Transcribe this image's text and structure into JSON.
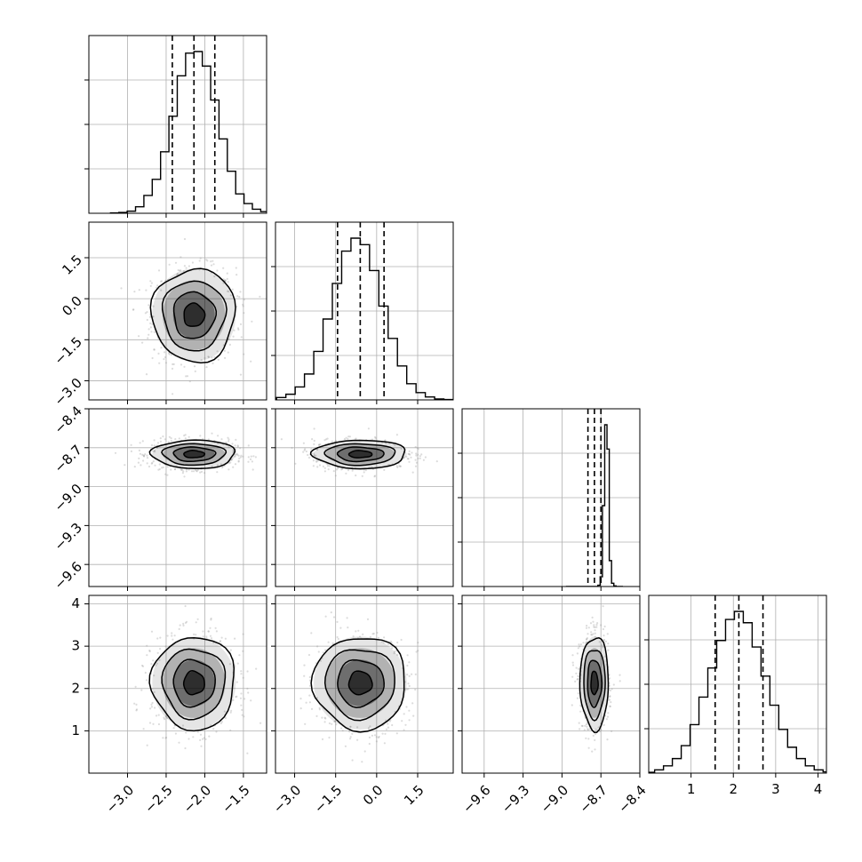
{
  "chart_data": {
    "type": "corner",
    "title": "",
    "grid": true,
    "parameters": [
      {
        "name": "",
        "range": [
          -3.5,
          -1.2
        ],
        "ticks": [
          -3.0,
          -2.5,
          -2.0,
          -1.5
        ],
        "tick_labels": [
          "−3.0",
          "−2.5",
          "−2.0",
          "−1.5"
        ],
        "quantiles": [
          -2.42,
          -2.14,
          -1.87
        ],
        "mean": -2.14,
        "std": 0.27
      },
      {
        "name": "",
        "range": [
          -3.7,
          2.8
        ],
        "ticks": [
          -3.0,
          -1.5,
          0.0,
          1.5
        ],
        "tick_labels": [
          "−3.0",
          "−1.5",
          "0.0",
          "1.5"
        ],
        "quantiles": [
          -1.43,
          -0.6,
          0.27
        ],
        "mean": -0.6,
        "std": 0.85
      },
      {
        "name": "",
        "range": [
          -9.77,
          -8.4
        ],
        "ticks": [
          -9.6,
          -9.3,
          -9.0,
          -8.7,
          -8.4
        ],
        "tick_labels": [
          "−9.6",
          "−9.3",
          "−9.0",
          "−8.7",
          "−8.4"
        ],
        "quantiles": [
          -8.8,
          -8.75,
          -8.7
        ],
        "mean": -8.75,
        "std": 0.055
      },
      {
        "name": "",
        "range": [
          0.0,
          4.2
        ],
        "ticks": [
          1,
          2,
          3,
          4
        ],
        "tick_labels": [
          "1",
          "2",
          "3",
          "4"
        ],
        "quantiles": [
          1.57,
          2.13,
          2.7
        ],
        "mean": 2.13,
        "std": 0.55
      }
    ],
    "histograms": [
      [
        0.002,
        0.005,
        0.013,
        0.04,
        0.11,
        0.21,
        0.38,
        0.6,
        0.85,
        0.99,
        1.0,
        0.91,
        0.7,
        0.46,
        0.26,
        0.12,
        0.06,
        0.025,
        0.01,
        0.003
      ],
      [
        0.004,
        0.015,
        0.035,
        0.08,
        0.16,
        0.3,
        0.5,
        0.72,
        0.92,
        1.0,
        0.96,
        0.8,
        0.58,
        0.38,
        0.21,
        0.1,
        0.045,
        0.018,
        0.006,
        0.002
      ],
      [
        0.0,
        0.0,
        0.0,
        0.0,
        0.0,
        0.0,
        0.0,
        0.0,
        0.0,
        0.0,
        0.0,
        0.0,
        0.0,
        0.0,
        0.008,
        0.06,
        0.5,
        1.0,
        0.85,
        0.16,
        0.02,
        0.004,
        0.0,
        0.0,
        0.0
      ],
      [
        0.005,
        0.02,
        0.045,
        0.09,
        0.17,
        0.3,
        0.47,
        0.65,
        0.82,
        0.95,
        1.0,
        0.93,
        0.78,
        0.6,
        0.42,
        0.27,
        0.16,
        0.09,
        0.045,
        0.02,
        0.008
      ]
    ],
    "contour_levels": [
      0.5,
      1.0,
      1.5,
      2.0
    ],
    "colors": {
      "line": "#000000",
      "grid": "#b0b0b0",
      "points": "#9a9a9a",
      "quantile": "#000000"
    }
  }
}
